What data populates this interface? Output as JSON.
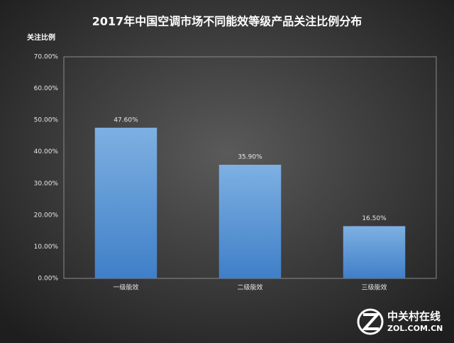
{
  "chart_data": {
    "type": "bar",
    "title": "2017年中国空调市场不同能效等级产品关注比例分布",
    "y_label": "关注比例",
    "categories": [
      "一级能效",
      "二级能效",
      "三级能效"
    ],
    "values": [
      47.6,
      35.9,
      16.5
    ],
    "value_labels": [
      "47.60%",
      "35.90%",
      "16.50%"
    ],
    "color": "#5b9bd5",
    "ylim": [
      0,
      70
    ],
    "yticks": [
      {
        "value": 0,
        "label": "0.00%"
      },
      {
        "value": 10,
        "label": "10.00%"
      },
      {
        "value": 20,
        "label": "20.00%"
      },
      {
        "value": 30,
        "label": "30.00%"
      },
      {
        "value": 40,
        "label": "40.00%"
      },
      {
        "value": 50,
        "label": "50.00%"
      },
      {
        "value": 60,
        "label": "60.00%"
      },
      {
        "value": 70,
        "label": "70.00%"
      }
    ],
    "grid": false,
    "watermark": {
      "name": "中关村在线",
      "site": "ZOL.COM.CN"
    }
  }
}
